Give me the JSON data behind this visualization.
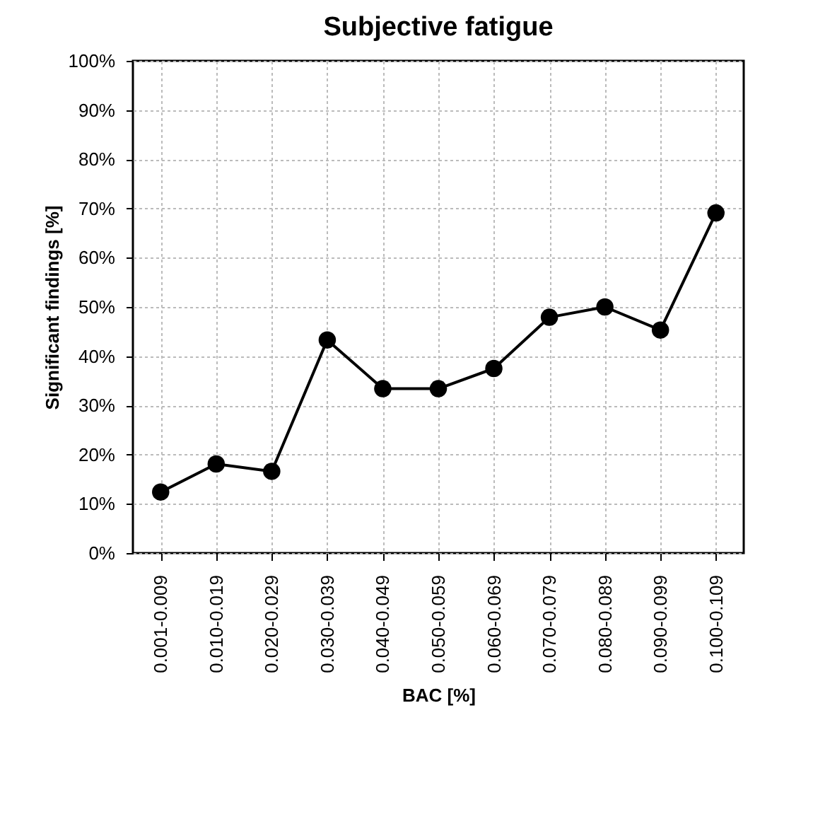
{
  "chart_data": {
    "type": "line",
    "title": "Subjective fatigue",
    "xlabel": "BAC [%]",
    "ylabel": "Significant findings [%]",
    "categories": [
      "0.001-0.009",
      "0.010-0.019",
      "0.020-0.029",
      "0.030-0.039",
      "0.040-0.049",
      "0.050-0.059",
      "0.060-0.069",
      "0.070-0.079",
      "0.080-0.089",
      "0.090-0.099",
      "0.100-0.109"
    ],
    "series": [
      {
        "color": "#000000",
        "values": [
          12.4,
          18.1,
          16.6,
          43.3,
          33.4,
          33.4,
          37.5,
          47.9,
          50,
          45.3,
          69.1
        ]
      }
    ],
    "ylim": [
      0,
      100
    ],
    "yticks": [
      {
        "value": 0,
        "label": "0%"
      },
      {
        "value": 10,
        "label": "10%"
      },
      {
        "value": 20,
        "label": "20%"
      },
      {
        "value": 30,
        "label": "30%"
      },
      {
        "value": 40,
        "label": "40%"
      },
      {
        "value": 50,
        "label": "50%"
      },
      {
        "value": 60,
        "label": "60%"
      },
      {
        "value": 70,
        "label": "70%"
      },
      {
        "value": 80,
        "label": "80%"
      },
      {
        "value": 90,
        "label": "90%"
      },
      {
        "value": 100,
        "label": "100%"
      }
    ],
    "grid": true,
    "marker": "circle",
    "line_style": "solid"
  }
}
